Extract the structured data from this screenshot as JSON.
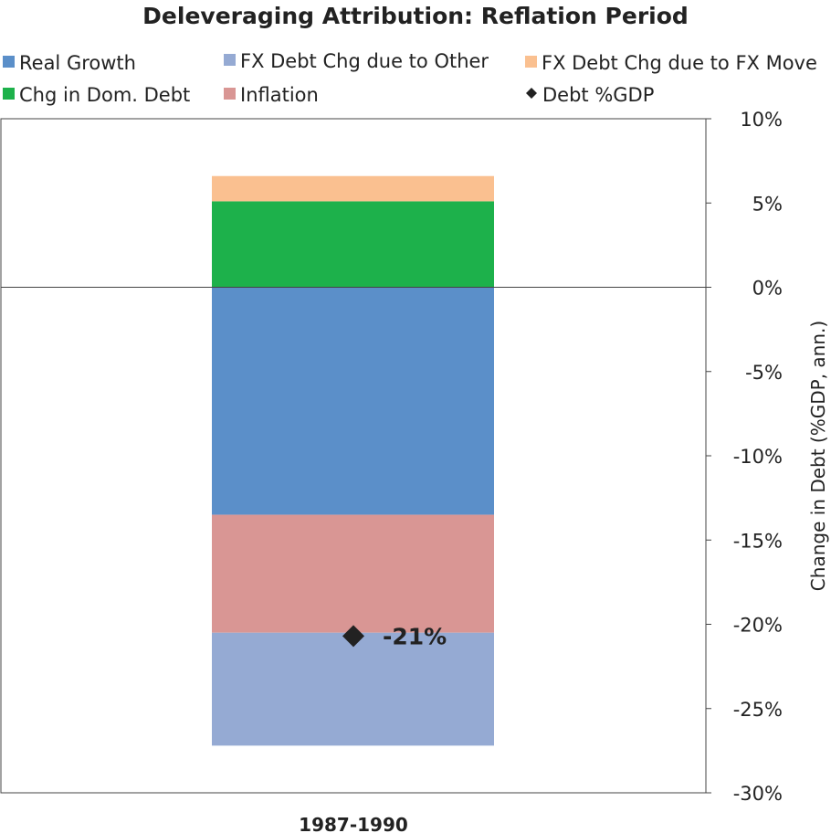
{
  "chart_data": {
    "type": "bar",
    "stacked": true,
    "title": "Deleveraging Attribution: Reflation Period",
    "categories": [
      "1987-1990"
    ],
    "ylabel": "Change in Debt (%GDP, ann.)",
    "ylim": [
      -30,
      10
    ],
    "y_ticks": [
      "10%",
      "5%",
      "0%",
      "-5%",
      "-10%",
      "-15%",
      "-20%",
      "-25%",
      "-30%"
    ],
    "y_tick_values": [
      10,
      5,
      0,
      -5,
      -10,
      -15,
      -20,
      -25,
      -30
    ],
    "grid": false,
    "legend_position": "top",
    "series": [
      {
        "name": "Real Growth",
        "values": [
          -13.5
        ],
        "color": "#5b8fc9"
      },
      {
        "name": "FX Debt Chg due to Other",
        "values": [
          -6.7
        ],
        "color": "#95aad3"
      },
      {
        "name": "FX Debt Chg due to FX Move",
        "values": [
          1.5
        ],
        "color": "#fac090"
      },
      {
        "name": "Chg in Dom. Debt",
        "values": [
          5.1
        ],
        "color": "#1db14b"
      },
      {
        "name": "Inflation",
        "values": [
          -7.0
        ],
        "color": "#d99694"
      }
    ],
    "stack_order_negative": [
      "Real Growth",
      "Inflation",
      "FX Debt Chg due to Other"
    ],
    "stack_order_positive": [
      "Chg in Dom. Debt",
      "FX Debt Chg due to FX Move"
    ],
    "markers": [
      {
        "name": "Debt %GDP",
        "values": [
          -20.7
        ],
        "label": "-21%",
        "color": "#222222",
        "shape": "diamond-icon"
      }
    ]
  }
}
